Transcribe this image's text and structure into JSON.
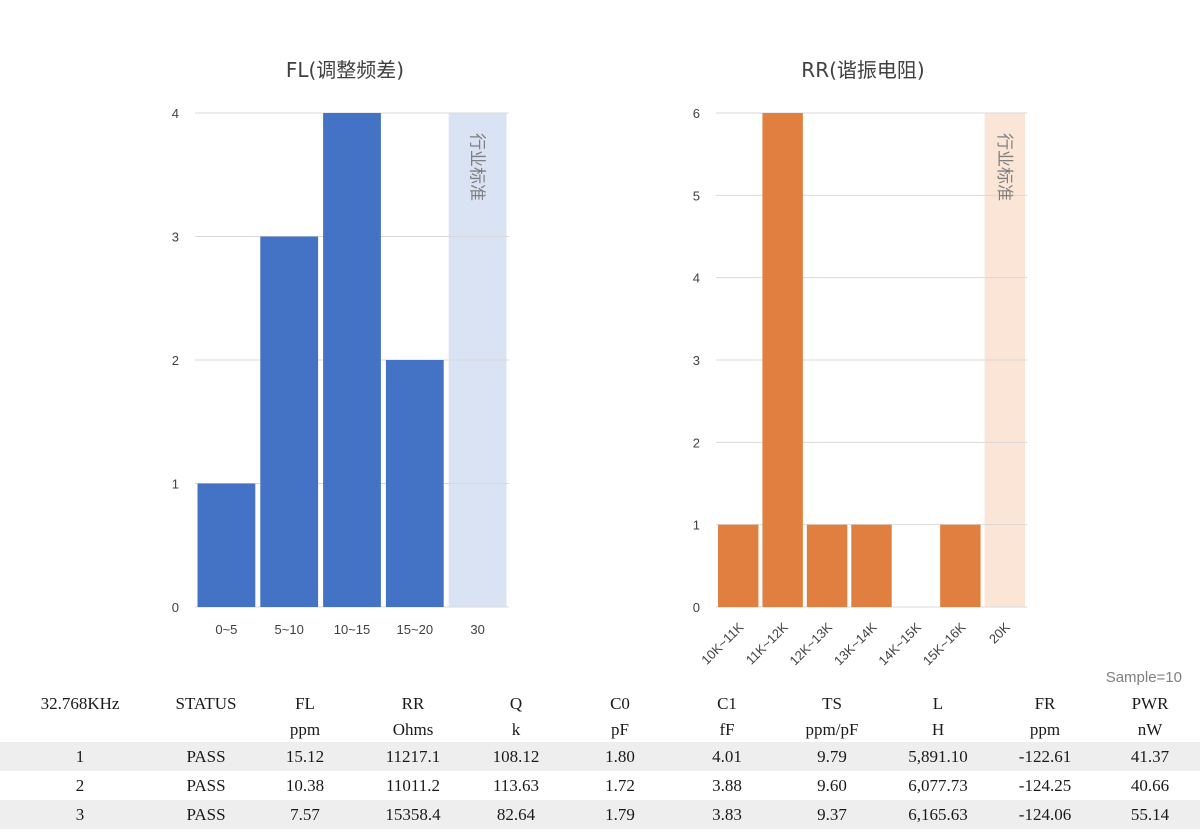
{
  "chart_data": [
    {
      "type": "bar",
      "title": "FL(调整频差)",
      "categories": [
        "0~5",
        "5~10",
        "10~15",
        "15~20",
        "30"
      ],
      "values": [
        1,
        3,
        4,
        2,
        null
      ],
      "ylim": [
        0,
        4
      ],
      "yticks": [
        "0",
        "1",
        "2",
        "3",
        "4"
      ],
      "grid": true,
      "bar_color": "#4472c4",
      "reference_band": {
        "category": "30",
        "label": "行业标准",
        "color": "#dae3f3"
      }
    },
    {
      "type": "bar",
      "title": "RR(谐振电阻)",
      "categories": [
        "10K~11K",
        "11K~12K",
        "12K~13K",
        "13K~14K",
        "14K~15K",
        "15K~16K",
        "20K"
      ],
      "values": [
        1,
        6,
        1,
        1,
        0,
        1,
        null
      ],
      "ylim": [
        0,
        6
      ],
      "yticks": [
        "0",
        "1",
        "2",
        "3",
        "4",
        "5",
        "6"
      ],
      "grid": true,
      "bar_color": "#e07f3f",
      "reference_band": {
        "category": "20K",
        "label": "行业标准",
        "color": "#fbe5d6"
      }
    }
  ],
  "sample_label": "Sample=10",
  "table": {
    "headers": [
      "32.768KHz",
      "STATUS",
      "FL",
      "RR",
      "Q",
      "C0",
      "C1",
      "TS",
      "L",
      "FR",
      "PWR"
    ],
    "units": [
      "",
      "",
      "ppm",
      "Ohms",
      "k",
      "pF",
      "fF",
      "ppm/pF",
      "H",
      "ppm",
      "nW"
    ],
    "rows": [
      [
        "1",
        "PASS",
        "15.12",
        "11217.1",
        "108.12",
        "1.80",
        "4.01",
        "9.79",
        "5,891.10",
        "-122.61",
        "41.37"
      ],
      [
        "2",
        "PASS",
        "10.38",
        "11011.2",
        "113.63",
        "1.72",
        "3.88",
        "9.60",
        "6,077.73",
        "-124.25",
        "40.66"
      ],
      [
        "3",
        "PASS",
        "7.57",
        "15358.4",
        "82.64",
        "1.79",
        "3.83",
        "9.37",
        "6,165.63",
        "-124.06",
        "55.14"
      ]
    ]
  }
}
